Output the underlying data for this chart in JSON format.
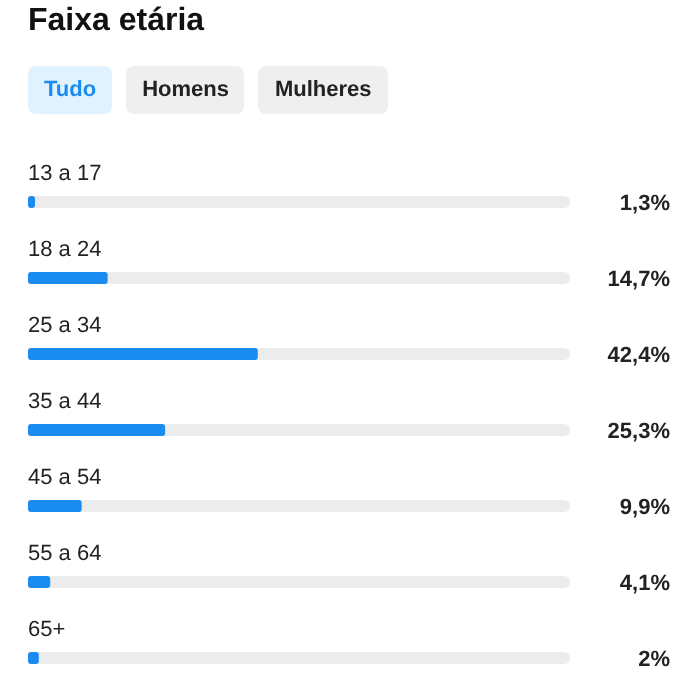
{
  "chart_data": {
    "type": "bar",
    "orientation": "horizontal",
    "title": "Faixa etária",
    "annotations": [
      "Tudo",
      "Homens",
      "Mulheres"
    ],
    "categories": [
      "13 a 17",
      "18 a 24",
      "25 a 34",
      "35 a 44",
      "45 a 54",
      "55 a 64",
      "65+"
    ],
    "values": [
      1.3,
      14.7,
      42.4,
      25.3,
      9.9,
      4.1,
      2
    ],
    "value_labels": [
      "1,3%",
      "14,7%",
      "42,4%",
      "25,3%",
      "9,9%",
      "4,1%",
      "2%"
    ],
    "color": "#1a8cf0",
    "xlim": [
      0,
      100
    ],
    "tick_labels": false
  }
}
